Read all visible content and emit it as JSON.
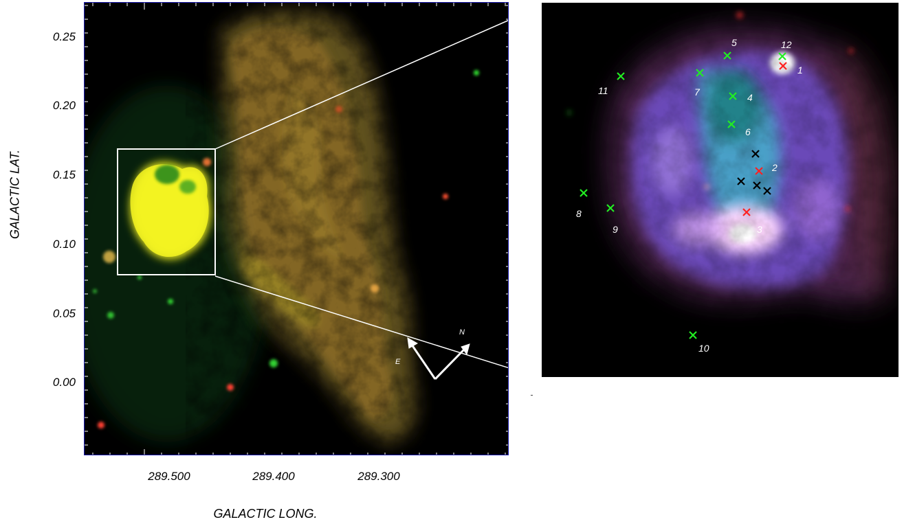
{
  "figure": {
    "left_panel": {
      "y_axis": {
        "title": "GALACTIC LAT.",
        "ticks": [
          "0.25",
          "0.20",
          "0.15",
          "0.10",
          "0.05",
          "0.00"
        ]
      },
      "x_axis": {
        "title": "GALACTIC LONG.",
        "ticks": [
          "289.500",
          "289.400",
          "289.300"
        ]
      },
      "compass": {
        "north": "N",
        "east": "E"
      }
    },
    "right_panel": {
      "markers": [
        {
          "label": "1",
          "color": "#ff2020"
        },
        {
          "label": "2",
          "color": "#ff2020"
        },
        {
          "label": "3",
          "color": "#ff2020"
        },
        {
          "label": "4",
          "color": "#22ee22"
        },
        {
          "label": "5",
          "color": "#22ee22"
        },
        {
          "label": "6",
          "color": "#22ee22"
        },
        {
          "label": "7",
          "color": "#22ee22"
        },
        {
          "label": "8",
          "color": "#22ee22"
        },
        {
          "label": "9",
          "color": "#22ee22"
        },
        {
          "label": "10",
          "color": "#22ee22"
        },
        {
          "label": "11",
          "color": "#22ee22"
        },
        {
          "label": "12",
          "color": "#22ee22"
        }
      ],
      "unlabeled_marker_color": "#000000",
      "unlabeled_marker_count": 4
    },
    "colors": {
      "axis_frame": "#1a1ab0",
      "background": "#000000",
      "overlay_lines": "#ffffff"
    }
  }
}
